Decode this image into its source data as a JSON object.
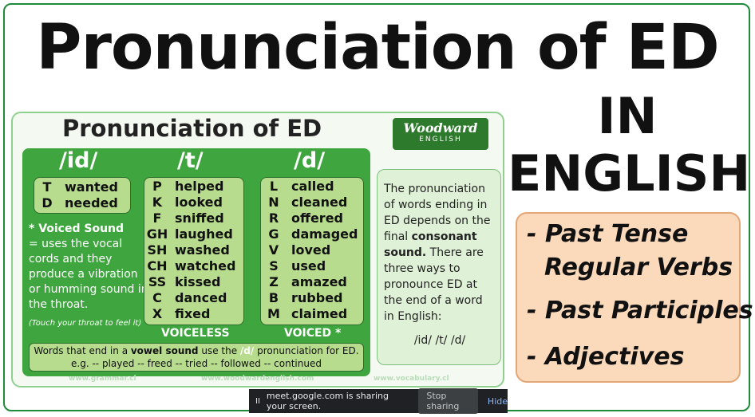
{
  "title": "Pronunciation of ED",
  "subtitle_line1": "IN",
  "subtitle_line2": "ENGLISH",
  "uses": [
    "- Past Tense",
    "Regular Verbs",
    "- Past Participles",
    "- Adjectives"
  ],
  "card": {
    "title": "Pronunciation of ED",
    "logo_text": "Woodward",
    "logo_sub": "ENGLISH",
    "columns": {
      "id": {
        "head": "/id/",
        "rows": [
          [
            "T",
            "wanted"
          ],
          [
            "D",
            "needed"
          ]
        ],
        "voiced_heading": "* Voiced Sound",
        "voiced_body": "= uses the vocal cords and they produce a vibration or humming sound in the throat.",
        "voiced_note": "(Touch your throat to feel it)"
      },
      "t": {
        "head": "/t/",
        "rows": [
          [
            "P",
            "helped"
          ],
          [
            "K",
            "looked"
          ],
          [
            "F",
            "sniffed"
          ],
          [
            "GH",
            "laughed"
          ],
          [
            "SH",
            "washed"
          ],
          [
            "CH",
            "watched"
          ],
          [
            "SS",
            "kissed"
          ],
          [
            "C",
            "danced"
          ],
          [
            "X",
            "fixed"
          ]
        ],
        "label": "VOICELESS"
      },
      "d": {
        "head": "/d/",
        "rows": [
          [
            "L",
            "called"
          ],
          [
            "N",
            "cleaned"
          ],
          [
            "R",
            "offered"
          ],
          [
            "G",
            "damaged"
          ],
          [
            "V",
            "loved"
          ],
          [
            "S",
            "used"
          ],
          [
            "Z",
            "amazed"
          ],
          [
            "B",
            "rubbed"
          ],
          [
            "M",
            "claimed"
          ]
        ],
        "label": "VOICED *"
      }
    },
    "vowel_note_pre": "Words that end in a ",
    "vowel_note_bold": "vowel sound",
    "vowel_note_mid": " use the ",
    "vowel_note_d": "/d/",
    "vowel_note_post": " pronunciation for ED.",
    "vowel_examples": "e.g. -- played -- freed -- tried -- followed -- continued",
    "explain_pre": "The pronunciation of words ending in ED depends on the final ",
    "explain_bold": "consonant sound.",
    "explain_post": " There are three ways to pronounce ED at the end of a word in English:",
    "explain_codes": "/id/  /t/  /d/",
    "urls": [
      "www.grammar.cl",
      "www.woodwardenglish.com",
      "www.vocabulary.cl"
    ]
  },
  "share_bar": {
    "pause": "II",
    "message": "meet.google.com is sharing your screen.",
    "stop_label": "Stop sharing",
    "hide_label": "Hide"
  },
  "colors": {
    "accent_green": "#3fa53f",
    "light_green": "#b7dc8e",
    "orange_box": "#fbd9bb"
  }
}
